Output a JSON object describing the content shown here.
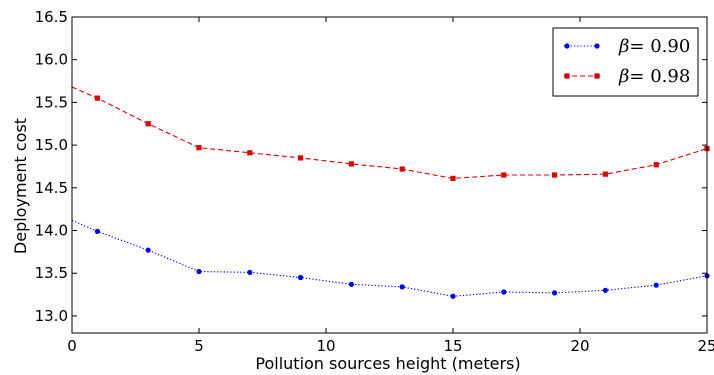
{
  "chart_data": {
    "type": "line",
    "xlabel": "Pollution sources height (meters)",
    "ylabel": "Deployment cost",
    "xlim": [
      0,
      25
    ],
    "ylim": [
      12.8,
      16.5
    ],
    "xticks": [
      0,
      5,
      10,
      15,
      20,
      25
    ],
    "yticks": [
      13.0,
      13.5,
      14.0,
      14.5,
      15.0,
      15.5,
      16.0,
      16.5
    ],
    "grid": false,
    "legend_position": "top-right",
    "series": [
      {
        "name": "β = 0.90",
        "legend_symbol": "β",
        "legend_value": "= 0.90",
        "color": "#0000ff",
        "line_style": "dotted",
        "marker": "circle",
        "x": [
          0,
          1,
          3,
          5,
          7,
          9,
          11,
          13,
          15,
          17,
          19,
          21,
          23,
          25
        ],
        "y": [
          14.12,
          13.99,
          13.77,
          13.52,
          13.51,
          13.45,
          13.37,
          13.34,
          13.23,
          13.28,
          13.27,
          13.3,
          13.36,
          13.47
        ],
        "marker_x": [
          1,
          3,
          5,
          7,
          9,
          11,
          13,
          15,
          17,
          19,
          21,
          23,
          25
        ]
      },
      {
        "name": "β = 0.98",
        "legend_symbol": "β",
        "legend_value": "= 0.98",
        "color": "#dd0000",
        "line_style": "dashed",
        "marker": "square",
        "x": [
          0,
          1,
          3,
          5,
          7,
          9,
          11,
          13,
          15,
          17,
          19,
          21,
          23,
          25
        ],
        "y": [
          15.68,
          15.55,
          15.25,
          14.97,
          14.91,
          14.85,
          14.78,
          14.72,
          14.61,
          14.65,
          14.65,
          14.66,
          14.77,
          14.96
        ],
        "marker_x": [
          1,
          3,
          5,
          7,
          9,
          11,
          13,
          15,
          17,
          19,
          21,
          23,
          25
        ]
      }
    ]
  }
}
